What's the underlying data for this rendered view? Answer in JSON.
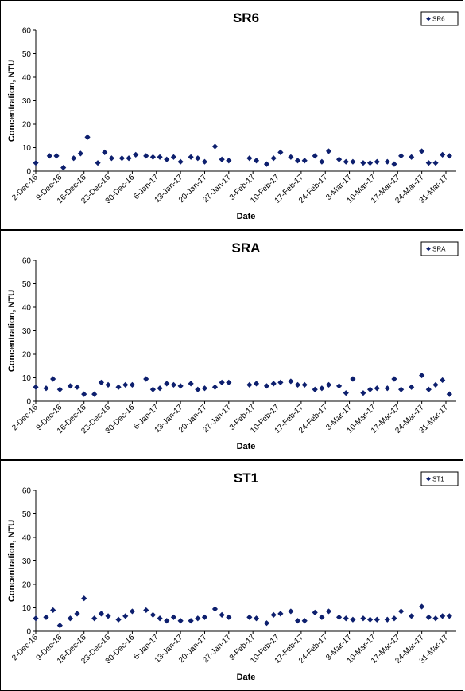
{
  "chart_data": [
    {
      "type": "scatter",
      "title": "SR6",
      "xlabel": "Date",
      "ylabel": "Concentration, NTU",
      "ylim": [
        0,
        60
      ],
      "yticks": [
        0,
        10,
        20,
        30,
        40,
        50,
        60
      ],
      "xtick_labels": [
        "2-Dec-16",
        "9-Dec-16",
        "16-Dec-16",
        "23-Dec-16",
        "30-Dec-16",
        "6-Jan-17",
        "13-Jan-17",
        "20-Jan-17",
        "27-Jan-17",
        "3-Feb-17",
        "10-Feb-17",
        "17-Feb-17",
        "24-Feb-17",
        "3-Mar-17",
        "10-Mar-17",
        "17-Mar-17",
        "24-Mar-17",
        "31-Mar-17"
      ],
      "xlim": [
        "2016-12-02",
        "2017-04-03"
      ],
      "grid": false,
      "legend": "top-right",
      "marker": "diamond",
      "color": "#0d1f6e",
      "series": [
        {
          "name": "SR6",
          "points": [
            [
              "2016-12-02",
              3.5
            ],
            [
              "2016-12-06",
              6.5
            ],
            [
              "2016-12-08",
              6.5
            ],
            [
              "2016-12-10",
              1.5
            ],
            [
              "2016-12-13",
              5.5
            ],
            [
              "2016-12-15",
              7.5
            ],
            [
              "2016-12-17",
              14.5
            ],
            [
              "2016-12-20",
              3.5
            ],
            [
              "2016-12-22",
              8
            ],
            [
              "2016-12-24",
              5.5
            ],
            [
              "2016-12-27",
              5.5
            ],
            [
              "2016-12-29",
              5.5
            ],
            [
              "2016-12-31",
              7
            ],
            [
              "2017-01-03",
              6.5
            ],
            [
              "2017-01-05",
              6
            ],
            [
              "2017-01-07",
              6
            ],
            [
              "2017-01-09",
              5
            ],
            [
              "2017-01-11",
              6
            ],
            [
              "2017-01-13",
              4
            ],
            [
              "2017-01-16",
              6
            ],
            [
              "2017-01-18",
              5.5
            ],
            [
              "2017-01-20",
              4
            ],
            [
              "2017-01-23",
              10.5
            ],
            [
              "2017-01-25",
              5
            ],
            [
              "2017-01-27",
              4.5
            ],
            [
              "2017-02-02",
              5.5
            ],
            [
              "2017-02-04",
              4.5
            ],
            [
              "2017-02-07",
              3
            ],
            [
              "2017-02-09",
              5.5
            ],
            [
              "2017-02-11",
              8
            ],
            [
              "2017-02-14",
              6
            ],
            [
              "2017-02-16",
              4.5
            ],
            [
              "2017-02-18",
              4.5
            ],
            [
              "2017-02-21",
              6.5
            ],
            [
              "2017-02-23",
              4
            ],
            [
              "2017-02-25",
              8.5
            ],
            [
              "2017-02-28",
              5
            ],
            [
              "2017-03-02",
              4
            ],
            [
              "2017-03-04",
              4
            ],
            [
              "2017-03-07",
              3.5
            ],
            [
              "2017-03-09",
              3.5
            ],
            [
              "2017-03-11",
              4
            ],
            [
              "2017-03-14",
              4
            ],
            [
              "2017-03-16",
              3
            ],
            [
              "2017-03-18",
              6.5
            ],
            [
              "2017-03-21",
              6
            ],
            [
              "2017-03-24",
              8.5
            ],
            [
              "2017-03-26",
              3.5
            ],
            [
              "2017-03-28",
              3.5
            ],
            [
              "2017-03-30",
              7
            ],
            [
              "2017-04-01",
              6.5
            ]
          ]
        }
      ]
    },
    {
      "type": "scatter",
      "title": "SRA",
      "xlabel": "Date",
      "ylabel": "Concentration, NTU",
      "ylim": [
        0,
        60
      ],
      "yticks": [
        0,
        10,
        20,
        30,
        40,
        50,
        60
      ],
      "xtick_labels": [
        "2-Dec-16",
        "9-Dec-16",
        "16-Dec-16",
        "23-Dec-16",
        "30-Dec-16",
        "6-Jan-17",
        "13-Jan-17",
        "20-Jan-17",
        "27-Jan-17",
        "3-Feb-17",
        "10-Feb-17",
        "17-Feb-17",
        "24-Feb-17",
        "3-Mar-17",
        "10-Mar-17",
        "17-Mar-17",
        "24-Mar-17",
        "31-Mar-17"
      ],
      "xlim": [
        "2016-12-02",
        "2017-04-03"
      ],
      "grid": false,
      "legend": "top-right",
      "marker": "diamond",
      "color": "#0d1f6e",
      "series": [
        {
          "name": "SRA",
          "points": [
            [
              "2016-12-02",
              6
            ],
            [
              "2016-12-05",
              5.5
            ],
            [
              "2016-12-07",
              9.5
            ],
            [
              "2016-12-09",
              5
            ],
            [
              "2016-12-12",
              6.5
            ],
            [
              "2016-12-14",
              6
            ],
            [
              "2016-12-16",
              3
            ],
            [
              "2016-12-19",
              3
            ],
            [
              "2016-12-21",
              8
            ],
            [
              "2016-12-23",
              7
            ],
            [
              "2016-12-26",
              6
            ],
            [
              "2016-12-28",
              7
            ],
            [
              "2016-12-30",
              7
            ],
            [
              "2017-01-03",
              9.5
            ],
            [
              "2017-01-05",
              5
            ],
            [
              "2017-01-07",
              5.5
            ],
            [
              "2017-01-09",
              7.5
            ],
            [
              "2017-01-11",
              7
            ],
            [
              "2017-01-13",
              6.5
            ],
            [
              "2017-01-16",
              7.5
            ],
            [
              "2017-01-18",
              5
            ],
            [
              "2017-01-20",
              5.5
            ],
            [
              "2017-01-23",
              6
            ],
            [
              "2017-01-25",
              8
            ],
            [
              "2017-01-27",
              8
            ],
            [
              "2017-02-02",
              7
            ],
            [
              "2017-02-04",
              7.5
            ],
            [
              "2017-02-07",
              6.5
            ],
            [
              "2017-02-09",
              7.5
            ],
            [
              "2017-02-11",
              8
            ],
            [
              "2017-02-14",
              8.5
            ],
            [
              "2017-02-16",
              7
            ],
            [
              "2017-02-18",
              7
            ],
            [
              "2017-02-21",
              5
            ],
            [
              "2017-02-23",
              5.5
            ],
            [
              "2017-02-25",
              7
            ],
            [
              "2017-02-28",
              6.5
            ],
            [
              "2017-03-02",
              3.5
            ],
            [
              "2017-03-04",
              9.5
            ],
            [
              "2017-03-07",
              3.5
            ],
            [
              "2017-03-09",
              5
            ],
            [
              "2017-03-11",
              5.5
            ],
            [
              "2017-03-14",
              5.5
            ],
            [
              "2017-03-16",
              9.5
            ],
            [
              "2017-03-18",
              5
            ],
            [
              "2017-03-21",
              6
            ],
            [
              "2017-03-24",
              11
            ],
            [
              "2017-03-26",
              5
            ],
            [
              "2017-03-28",
              7
            ],
            [
              "2017-03-30",
              9
            ],
            [
              "2017-04-01",
              3
            ]
          ]
        }
      ]
    },
    {
      "type": "scatter",
      "title": "ST1",
      "xlabel": "Date",
      "ylabel": "Concentration, NTU",
      "ylim": [
        0,
        60
      ],
      "yticks": [
        0,
        10,
        20,
        30,
        40,
        50,
        60
      ],
      "xtick_labels": [
        "2-Dec-16",
        "9-Dec-16",
        "16-Dec-16",
        "23-Dec-16",
        "30-Dec-16",
        "6-Jan-17",
        "13-Jan-17",
        "20-Jan-17",
        "27-Jan-17",
        "3-Feb-17",
        "10-Feb-17",
        "17-Feb-17",
        "24-Feb-17",
        "3-Mar-17",
        "10-Mar-17",
        "17-Mar-17",
        "24-Mar-17",
        "31-Mar-17"
      ],
      "xlim": [
        "2016-12-02",
        "2017-04-03"
      ],
      "grid": false,
      "legend": "top-right",
      "marker": "diamond",
      "color": "#0d1f6e",
      "series": [
        {
          "name": "ST1",
          "points": [
            [
              "2016-12-02",
              5.5
            ],
            [
              "2016-12-05",
              6
            ],
            [
              "2016-12-07",
              9
            ],
            [
              "2016-12-09",
              2.5
            ],
            [
              "2016-12-12",
              5.5
            ],
            [
              "2016-12-14",
              7.5
            ],
            [
              "2016-12-16",
              14
            ],
            [
              "2016-12-19",
              5.5
            ],
            [
              "2016-12-21",
              7.5
            ],
            [
              "2016-12-23",
              6.5
            ],
            [
              "2016-12-26",
              5
            ],
            [
              "2016-12-28",
              6.5
            ],
            [
              "2016-12-30",
              8.5
            ],
            [
              "2017-01-03",
              9
            ],
            [
              "2017-01-05",
              7
            ],
            [
              "2017-01-07",
              5.5
            ],
            [
              "2017-01-09",
              4.5
            ],
            [
              "2017-01-11",
              6
            ],
            [
              "2017-01-13",
              4.5
            ],
            [
              "2017-01-16",
              4.5
            ],
            [
              "2017-01-18",
              5.5
            ],
            [
              "2017-01-20",
              6
            ],
            [
              "2017-01-23",
              9.5
            ],
            [
              "2017-01-25",
              7
            ],
            [
              "2017-01-27",
              6
            ],
            [
              "2017-02-02",
              6
            ],
            [
              "2017-02-04",
              5.5
            ],
            [
              "2017-02-07",
              3.5
            ],
            [
              "2017-02-09",
              7
            ],
            [
              "2017-02-11",
              7.5
            ],
            [
              "2017-02-14",
              8.5
            ],
            [
              "2017-02-16",
              4.5
            ],
            [
              "2017-02-18",
              4.5
            ],
            [
              "2017-02-21",
              8
            ],
            [
              "2017-02-23",
              6
            ],
            [
              "2017-02-25",
              8.5
            ],
            [
              "2017-02-28",
              6
            ],
            [
              "2017-03-02",
              5.5
            ],
            [
              "2017-03-04",
              5
            ],
            [
              "2017-03-07",
              5.5
            ],
            [
              "2017-03-09",
              5
            ],
            [
              "2017-03-11",
              5
            ],
            [
              "2017-03-14",
              5
            ],
            [
              "2017-03-16",
              5.5
            ],
            [
              "2017-03-18",
              8.5
            ],
            [
              "2017-03-21",
              6.5
            ],
            [
              "2017-03-24",
              10.5
            ],
            [
              "2017-03-26",
              6
            ],
            [
              "2017-03-28",
              5.5
            ],
            [
              "2017-03-30",
              6.5
            ],
            [
              "2017-04-01",
              6.5
            ]
          ]
        }
      ]
    }
  ]
}
